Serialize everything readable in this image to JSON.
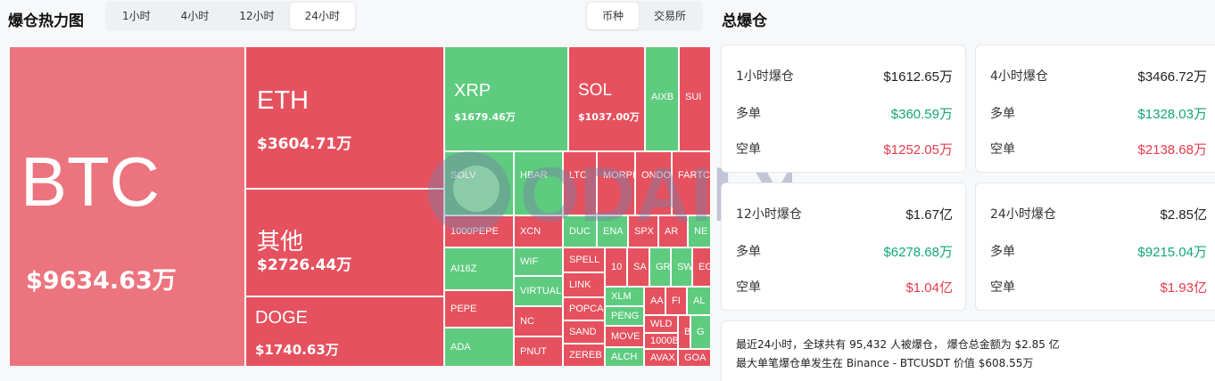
{
  "heatmap": {
    "title": "爆仓热力图",
    "time_tabs": [
      "1小时",
      "4小时",
      "12小时",
      "24小时"
    ],
    "active_time_tab": "24小时",
    "group_tabs": [
      "币种",
      "交易所"
    ],
    "active_group_tab": "币种",
    "tiles": [
      {
        "symbol": "BTC",
        "value": "$9634.63万",
        "color": "pink"
      },
      {
        "symbol": "ETH",
        "value": "$3604.71万",
        "color": "red"
      },
      {
        "symbol": "其他",
        "value": "$2726.44万",
        "color": "red"
      },
      {
        "symbol": "DOGE",
        "value": "$1740.63万",
        "color": "red"
      },
      {
        "symbol": "XRP",
        "value": "$1679.46万",
        "color": "green"
      },
      {
        "symbol": "SOL",
        "value": "$1037.00万",
        "color": "red"
      },
      {
        "symbol": "AIXB",
        "color": "green"
      },
      {
        "symbol": "SUI",
        "color": "red"
      },
      {
        "symbol": "SOLV",
        "color": "green"
      },
      {
        "symbol": "1000PEPE",
        "color": "red"
      },
      {
        "symbol": "HBAR",
        "color": "green"
      },
      {
        "symbol": "XCN",
        "color": "red"
      },
      {
        "symbol": "LTC",
        "color": "red"
      },
      {
        "symbol": "MORPHO",
        "color": "red"
      },
      {
        "symbol": "ONDO",
        "color": "red"
      },
      {
        "symbol": "FARTCOIN",
        "color": "red"
      },
      {
        "symbol": "DUC",
        "color": "green"
      },
      {
        "symbol": "ENA",
        "color": "green"
      },
      {
        "symbol": "SPX",
        "color": "red"
      },
      {
        "symbol": "AR",
        "color": "red"
      },
      {
        "symbol": "NE",
        "color": "green"
      },
      {
        "symbol": "AI16Z",
        "color": "green"
      },
      {
        "symbol": "WIF",
        "color": "green"
      },
      {
        "symbol": "VIRTUAL",
        "color": "green"
      },
      {
        "symbol": "PEPE",
        "color": "red"
      },
      {
        "symbol": "NC",
        "color": "red"
      },
      {
        "symbol": "ADA",
        "color": "green"
      },
      {
        "symbol": "PNUT",
        "color": "red"
      },
      {
        "symbol": "SPELL",
        "color": "red"
      },
      {
        "symbol": "LINK",
        "color": "red"
      },
      {
        "symbol": "POPCA",
        "color": "red"
      },
      {
        "symbol": "SAND",
        "color": "red"
      },
      {
        "symbol": "ZEREB",
        "color": "red"
      },
      {
        "symbol": "10",
        "color": "red"
      },
      {
        "symbol": "SA",
        "color": "red"
      },
      {
        "symbol": "GR",
        "color": "green"
      },
      {
        "symbol": "SW",
        "color": "green"
      },
      {
        "symbol": "EG",
        "color": "red"
      },
      {
        "symbol": "XLM",
        "color": "green"
      },
      {
        "symbol": "PENG",
        "color": "green"
      },
      {
        "symbol": "MOVE",
        "color": "red"
      },
      {
        "symbol": "ALCH",
        "color": "green"
      },
      {
        "symbol": "AA",
        "color": "red"
      },
      {
        "symbol": "FI",
        "color": "red"
      },
      {
        "symbol": "AL",
        "color": "green"
      },
      {
        "symbol": "WLD",
        "color": "red"
      },
      {
        "symbol": "1000B",
        "color": "red"
      },
      {
        "symbol": "AVAX",
        "color": "red"
      },
      {
        "symbol": "B",
        "color": "red"
      },
      {
        "symbol": "G",
        "color": "green"
      },
      {
        "symbol": "GOA",
        "color": "red"
      }
    ],
    "watermark": "ODAILY"
  },
  "colors": {
    "red": "#e5515e",
    "pink": "#eb747e",
    "green": "#5ecb7f",
    "long": "#12a679",
    "short": "#e53b4b"
  },
  "totals": {
    "title": "总爆仓",
    "long_label": "多单",
    "short_label": "空单",
    "cards": [
      {
        "period": "1小时爆仓",
        "total": "$1612.65万",
        "long": "$360.59万",
        "short": "$1252.05万"
      },
      {
        "period": "4小时爆仓",
        "total": "$3466.72万",
        "long": "$1328.03万",
        "short": "$2138.68万"
      },
      {
        "period": "12小时爆仓",
        "total": "$1.67亿",
        "long": "$6278.68万",
        "short": "$1.04亿"
      },
      {
        "period": "24小时爆仓",
        "total": "$2.85亿",
        "long": "$9215.04万",
        "short": "$1.93亿"
      }
    ],
    "summary_line1": "最近24小时，全球共有 95,432 人被爆仓， 爆仓总金额为 $2.85 亿",
    "summary_line2": "最大单笔爆仓单发生在 Binance - BTCUSDT 价值 $608.55万"
  }
}
